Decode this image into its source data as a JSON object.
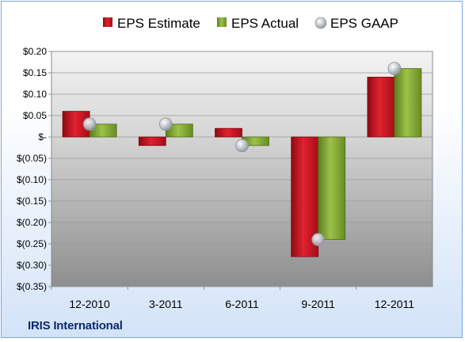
{
  "company": "IRIS International",
  "colors": {
    "estimate": "#c8101e",
    "actual": "#7aa22b",
    "gaap": "#b0b6bf"
  },
  "chart_data": {
    "type": "bar",
    "categories": [
      "12-2010",
      "3-2011",
      "6-2011",
      "9-2011",
      "12-2011"
    ],
    "series": [
      {
        "name": "EPS Estimate",
        "kind": "bar",
        "values": [
          0.06,
          -0.02,
          0.02,
          -0.28,
          0.14
        ]
      },
      {
        "name": "EPS Actual",
        "kind": "bar",
        "values": [
          0.03,
          0.03,
          -0.02,
          -0.24,
          0.16
        ]
      },
      {
        "name": "EPS GAAP",
        "kind": "marker",
        "values": [
          0.03,
          0.03,
          -0.02,
          -0.24,
          0.16
        ]
      }
    ],
    "ylim": [
      -0.35,
      0.2
    ],
    "ytick_values": [
      0.2,
      0.15,
      0.1,
      0.05,
      0,
      -0.05,
      -0.1,
      -0.15,
      -0.2,
      -0.25,
      -0.3,
      -0.35
    ],
    "ytick_labels": [
      "$0.20",
      "$0.15",
      "$0.10",
      "$0.05",
      "$-",
      "$(0.05)",
      "$(0.10)",
      "$(0.15)",
      "$(0.20)",
      "$(0.25)",
      "$(0.30)",
      "$(0.35)"
    ],
    "legend_position": "top",
    "grid": true
  }
}
